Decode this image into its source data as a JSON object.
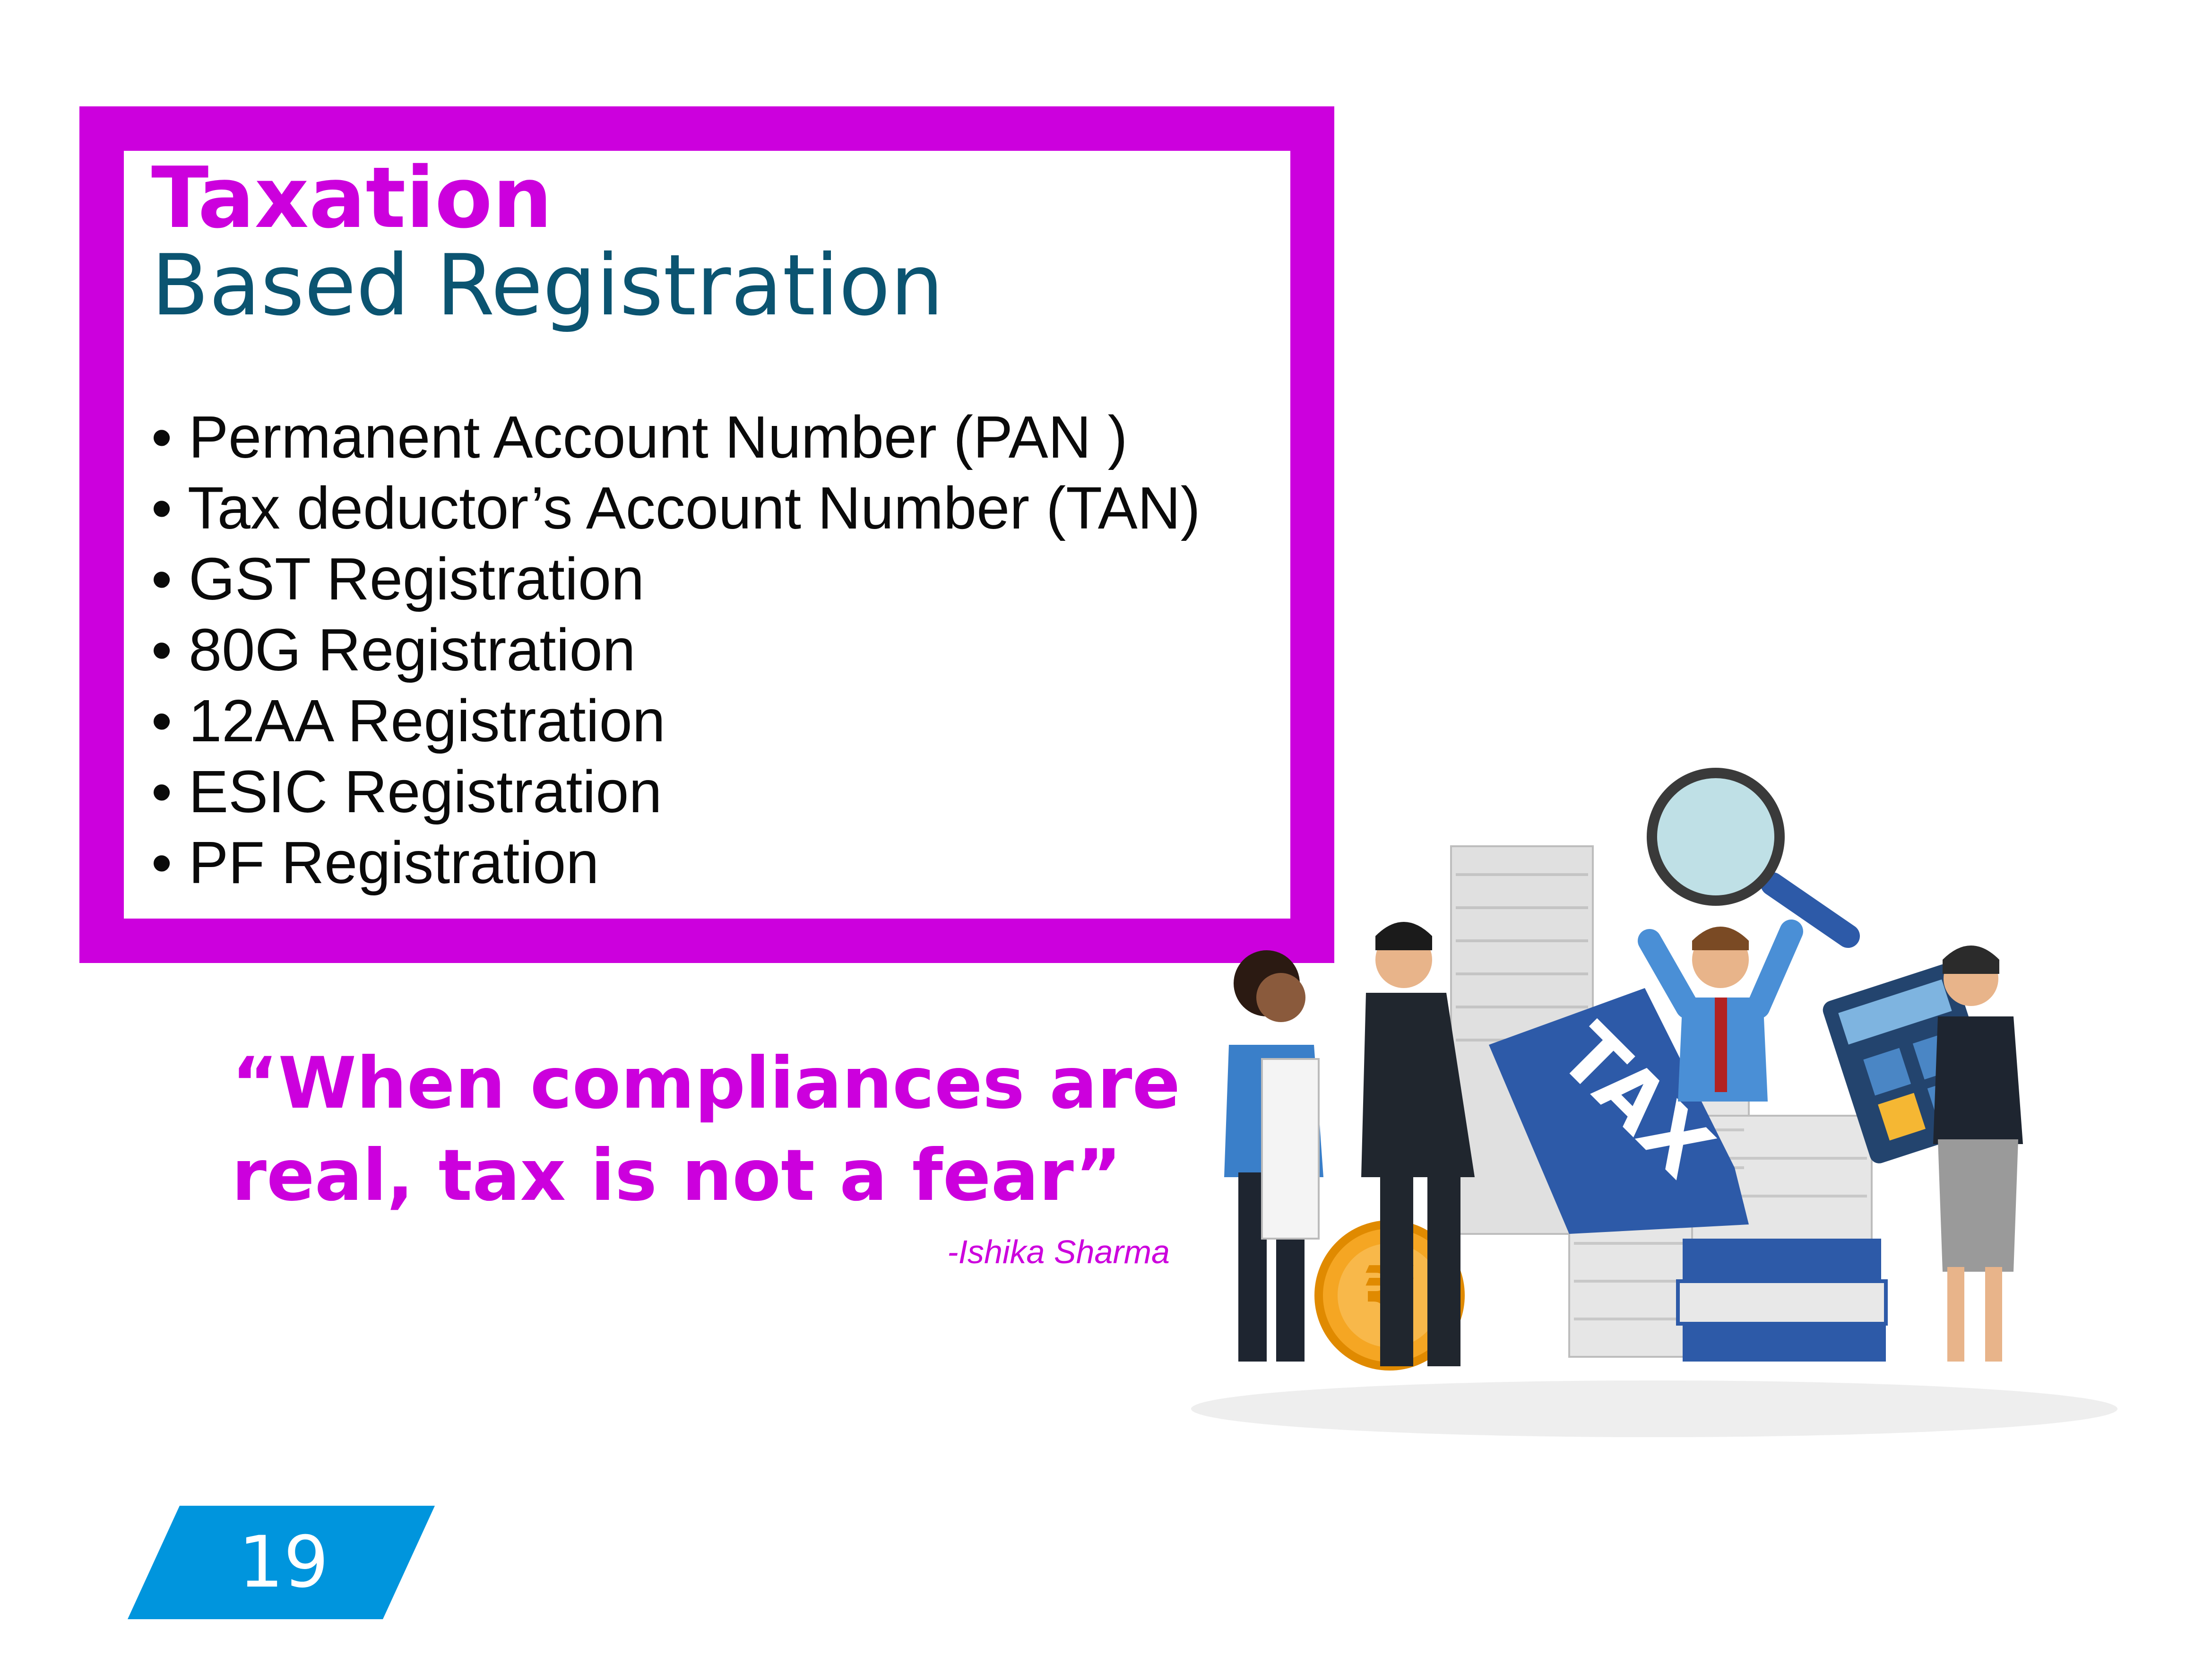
{
  "heading": {
    "line1": "Taxation",
    "line2": "Based Registration"
  },
  "registrations": [
    "• Permanent Account Number (PAN )",
    "• Tax deductor’s Account Number (TAN)",
    "• GST Registration",
    "• 80G Registration",
    "• 12AA Registration",
    "• ESIC Registration",
    "• PF Registration"
  ],
  "quote": {
    "line1": "“When compliances are",
    "line2": "real, tax is not a fear”",
    "author": "-Ishika Sharma"
  },
  "illustration": {
    "sign_text": "TAX",
    "coin_symbol": "₹"
  },
  "page_number": "19",
  "colors": {
    "accent": "#cc00dd",
    "heading_teal": "#0b5471",
    "page_tab": "#0095dd"
  }
}
